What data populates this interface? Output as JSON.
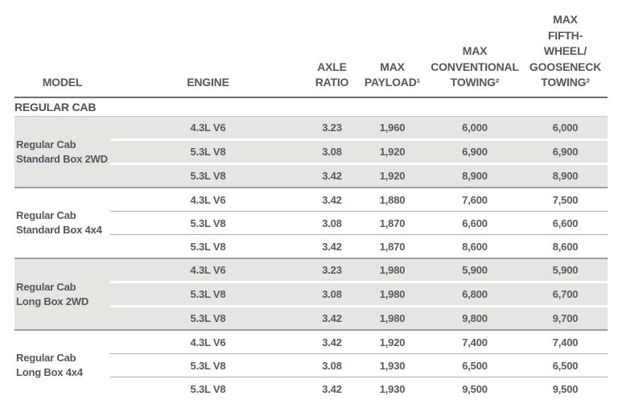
{
  "table": {
    "section_title": "REGULAR CAB",
    "columns": {
      "model": "MODEL",
      "engine": "ENGINE",
      "axle": "AXLE\nRATIO",
      "payload": "MAX\nPAYLOAD¹",
      "conventional": "MAX\nCONVENTIONAL\nTOWING²",
      "gooseneck": "MAX\nFIFTH-\nWHEEL/\nGOOSENECK\nTOWING²"
    },
    "groups": [
      {
        "model_line1": "Regular Cab",
        "model_line2": "Standard Box 2WD",
        "rows": [
          {
            "engine": "4.3L V6",
            "axle": "3.23",
            "payload": "1,960",
            "conventional": "6,000",
            "gooseneck": "6,000"
          },
          {
            "engine": "5.3L V8",
            "axle": "3.08",
            "payload": "1,920",
            "conventional": "6,900",
            "gooseneck": "6,900"
          },
          {
            "engine": "5.3L V8",
            "axle": "3.42",
            "payload": "1,920",
            "conventional": "8,900",
            "gooseneck": "8,900"
          }
        ]
      },
      {
        "model_line1": "Regular Cab",
        "model_line2": "Standard Box 4x4",
        "rows": [
          {
            "engine": "4.3L V6",
            "axle": "3.42",
            "payload": "1,880",
            "conventional": "7,600",
            "gooseneck": "7,500"
          },
          {
            "engine": "5.3L V8",
            "axle": "3.08",
            "payload": "1,870",
            "conventional": "6,600",
            "gooseneck": "6,600"
          },
          {
            "engine": "5.3L V8",
            "axle": "3.42",
            "payload": "1,870",
            "conventional": "8,600",
            "gooseneck": "8,600"
          }
        ]
      },
      {
        "model_line1": "Regular Cab",
        "model_line2": "Long Box 2WD",
        "rows": [
          {
            "engine": "4.3L V6",
            "axle": "3.23",
            "payload": "1,980",
            "conventional": "5,900",
            "gooseneck": "5,900"
          },
          {
            "engine": "5.3L V8",
            "axle": "3.08",
            "payload": "1,980",
            "conventional": "6,800",
            "gooseneck": "6,700"
          },
          {
            "engine": "5.3L V8",
            "axle": "3.42",
            "payload": "1,980",
            "conventional": "9,800",
            "gooseneck": "9,700"
          }
        ]
      },
      {
        "model_line1": "Regular Cab",
        "model_line2": "Long Box 4x4",
        "rows": [
          {
            "engine": "4.3L V6",
            "axle": "3.42",
            "payload": "1,920",
            "conventional": "7,400",
            "gooseneck": "7,400"
          },
          {
            "engine": "5.3L V8",
            "axle": "3.08",
            "payload": "1,930",
            "conventional": "6,500",
            "gooseneck": "6,500"
          },
          {
            "engine": "5.3L V8",
            "axle": "3.42",
            "payload": "1,930",
            "conventional": "9,500",
            "gooseneck": "9,500"
          }
        ]
      }
    ],
    "colors": {
      "text": "#55565a",
      "shaded_row_background": "#e7e5e2",
      "header_underline": "#6e6f72",
      "section_underline": "#c7c5c3",
      "group_separator": "#9b9c9e",
      "bottom_border": "#77787b"
    }
  }
}
